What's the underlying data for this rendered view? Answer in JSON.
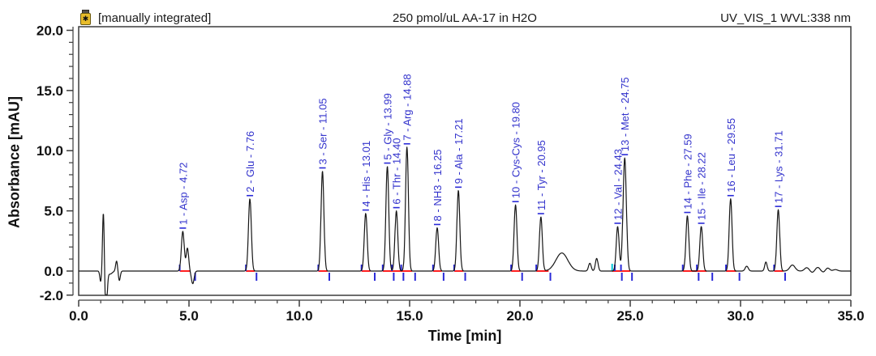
{
  "header": {
    "annotation_left": "[manually integrated]",
    "sample_title": "250 pmol/uL AA-17 in H2O",
    "channel_label": "UV_VIS_1 WVL:338 nm",
    "vial_icon_glyph": "✱"
  },
  "chart_data": {
    "type": "line",
    "title": "250 pmol/uL AA-17 in H2O",
    "xlabel": "Time [min]",
    "ylabel": "Absorbance [mAU]",
    "xlim": [
      0.0,
      35.0
    ],
    "ylim": [
      -2.0,
      20.3
    ],
    "x_major_ticks": [
      0,
      5,
      10,
      15,
      20,
      25,
      30,
      35
    ],
    "x_minor_interval": 1.0,
    "y_major_ticks": [
      0,
      5,
      10,
      15,
      20
    ],
    "y_axis_bottom_label": -2.0,
    "y_minor_interval": 1.0,
    "grid": false,
    "legend": "none",
    "peak_label_format": "num - name - rt",
    "default_sigma_min": 0.065,
    "peaks": [
      {
        "num": 1,
        "name": "Asp",
        "rt": 4.72,
        "height_mau": 3.3
      },
      {
        "num": 2,
        "name": "Glu",
        "rt": 7.76,
        "height_mau": 6.0
      },
      {
        "num": 3,
        "name": "Ser",
        "rt": 11.05,
        "height_mau": 8.3
      },
      {
        "num": 4,
        "name": "His",
        "rt": 13.01,
        "height_mau": 4.8
      },
      {
        "num": 5,
        "name": "Gly",
        "rt": 13.99,
        "height_mau": 8.7
      },
      {
        "num": 6,
        "name": "Thr",
        "rt": 14.4,
        "height_mau": 5.0
      },
      {
        "num": 7,
        "name": "Arg",
        "rt": 14.88,
        "height_mau": 10.3
      },
      {
        "num": 8,
        "name": "NH3",
        "rt": 16.25,
        "height_mau": 3.6
      },
      {
        "num": 9,
        "name": "Ala",
        "rt": 17.21,
        "height_mau": 6.7
      },
      {
        "num": 10,
        "name": "Cys-Cys",
        "rt": 19.8,
        "height_mau": 5.5
      },
      {
        "num": 11,
        "name": "Tyr",
        "rt": 20.95,
        "height_mau": 4.5
      },
      {
        "num": 12,
        "name": "Val",
        "rt": 24.43,
        "height_mau": 3.7
      },
      {
        "num": 13,
        "name": "Met",
        "rt": 24.75,
        "height_mau": 9.4,
        "sigma": 0.075
      },
      {
        "num": 14,
        "name": "Phe",
        "rt": 27.59,
        "height_mau": 4.6
      },
      {
        "num": 15,
        "name": "Ile",
        "rt": 28.22,
        "height_mau": 3.7
      },
      {
        "num": 16,
        "name": "Leu",
        "rt": 29.55,
        "height_mau": 6.0
      },
      {
        "num": 17,
        "name": "Lys",
        "rt": 31.71,
        "height_mau": 5.1
      }
    ],
    "unlabeled_features": [
      {
        "t": 1.0,
        "h": -0.9,
        "sigma": 0.04
      },
      {
        "t": 1.12,
        "h": 5.0,
        "sigma": 0.04
      },
      {
        "t": 1.24,
        "h": -3.5,
        "sigma": 0.05
      },
      {
        "t": 1.42,
        "h": -0.25,
        "sigma": 0.1
      },
      {
        "t": 1.72,
        "h": 0.85,
        "sigma": 0.045
      },
      {
        "t": 1.84,
        "h": -0.8,
        "sigma": 0.045
      },
      {
        "t": 4.93,
        "h": 1.9,
        "sigma": 0.055
      },
      {
        "t": 5.17,
        "h": -1.05,
        "sigma": 0.06
      },
      {
        "t": 21.9,
        "h": 1.5,
        "sigma": 0.27
      },
      {
        "t": 23.17,
        "h": 0.65,
        "sigma": 0.06
      },
      {
        "t": 23.48,
        "h": 1.05,
        "sigma": 0.06
      },
      {
        "t": 30.28,
        "h": 0.4,
        "sigma": 0.07
      },
      {
        "t": 31.15,
        "h": 0.75,
        "sigma": 0.055
      },
      {
        "t": 32.35,
        "h": 0.5,
        "sigma": 0.12
      },
      {
        "t": 33.0,
        "h": 0.28,
        "sigma": 0.1
      },
      {
        "t": 33.25,
        "h": -0.12,
        "sigma": 0.08
      },
      {
        "t": 33.5,
        "h": 0.3,
        "sigma": 0.1
      },
      {
        "t": 33.75,
        "h": -0.1,
        "sigma": 0.08
      },
      {
        "t": 33.95,
        "h": 0.25,
        "sigma": 0.09
      },
      {
        "t": 34.3,
        "h": 0.12,
        "sigma": 0.1
      }
    ],
    "integration_groups": [
      {
        "red": [
          4.58,
          5.06
        ],
        "up": [
          4.58
        ],
        "down": [
          5.28
        ]
      },
      {
        "red": [
          7.58,
          7.98
        ],
        "up": [
          7.58
        ],
        "down": [
          8.06
        ]
      },
      {
        "red": [
          10.86,
          11.28
        ],
        "up": [
          10.86
        ],
        "down": [
          11.36
        ]
      },
      {
        "red": [
          12.82,
          13.22
        ],
        "up": [
          12.82
        ],
        "down": [
          13.42
        ]
      },
      {
        "red": [
          13.78,
          15.12
        ],
        "up": [
          13.78,
          14.2,
          14.62
        ],
        "down": [
          14.28,
          14.72,
          15.25
        ]
      },
      {
        "red": [
          16.06,
          16.46
        ],
        "up": [
          16.06
        ],
        "down": [
          16.54
        ]
      },
      {
        "red": [
          17.02,
          17.44
        ],
        "up": [
          17.02
        ],
        "down": [
          17.52
        ]
      },
      {
        "red": [
          19.6,
          20.02
        ],
        "up": [
          19.6
        ],
        "down": [
          20.1
        ]
      },
      {
        "red": [
          20.74,
          21.3
        ],
        "up": [
          20.74
        ],
        "down": [
          21.38
        ]
      },
      {
        "red": [
          24.18,
          25.0
        ],
        "up": [
          24.3,
          24.58
        ],
        "down": [
          24.62,
          25.08
        ],
        "cyan": [
          24.18
        ]
      },
      {
        "red": [
          27.38,
          28.46
        ],
        "up": [
          27.38,
          28.02
        ],
        "down": [
          28.1,
          28.72
        ]
      },
      {
        "red": [
          29.34,
          29.8
        ],
        "up": [
          29.34
        ],
        "down": [
          29.95
        ]
      },
      {
        "red": [
          31.52,
          31.94
        ],
        "up": [
          31.52
        ],
        "down": [
          32.02
        ]
      }
    ],
    "colors": {
      "trace": "#161616",
      "peak_label": "#3333cc",
      "baseline_marker": "#ff2020",
      "delimiter_tick": "#2a2ad8",
      "delimiter_tick_alt": "#00c8d8",
      "axis": "#3c3c3c",
      "vial_body": "#e8bc2a"
    }
  }
}
